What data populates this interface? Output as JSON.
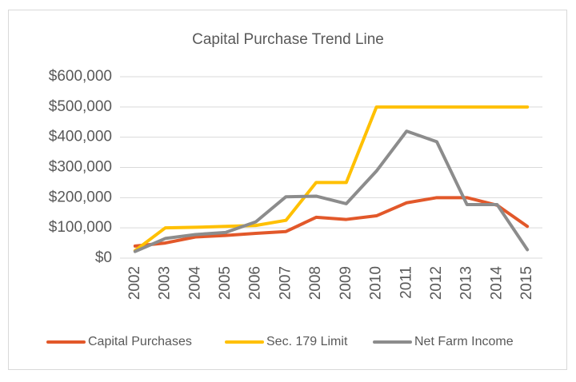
{
  "chart_data": {
    "type": "line",
    "title": "Capital Purchase Trend Line",
    "categories": [
      "2002",
      "2003",
      "2004",
      "2005",
      "2006",
      "2007",
      "2008",
      "2009",
      "2010",
      "2011",
      "2012",
      "2013",
      "2014",
      "2015"
    ],
    "series": [
      {
        "name": "Capital Purchases",
        "color": "#e2582a",
        "values": [
          40000,
          50000,
          70000,
          75000,
          82000,
          88000,
          135000,
          128000,
          140000,
          183000,
          200000,
          200000,
          175000,
          105000
        ]
      },
      {
        "name": "Sec. 179 Limit",
        "color": "#ffc000",
        "values": [
          25000,
          100000,
          102000,
          105000,
          108000,
          125000,
          250000,
          250000,
          500000,
          500000,
          500000,
          500000,
          500000,
          500000
        ]
      },
      {
        "name": "Net Farm Income",
        "color": "#8c8c8c",
        "values": [
          22000,
          65000,
          78000,
          85000,
          120000,
          203000,
          205000,
          180000,
          288000,
          420000,
          385000,
          177000,
          177000,
          28000
        ]
      }
    ],
    "ylim": [
      0,
      600000
    ],
    "yticks": [
      {
        "value": 0,
        "label": "$0"
      },
      {
        "value": 100000,
        "label": "$100,000"
      },
      {
        "value": 200000,
        "label": "$200,000"
      },
      {
        "value": 300000,
        "label": "$300,000"
      },
      {
        "value": 400000,
        "label": "$400,000"
      },
      {
        "value": 500000,
        "label": "$500,000"
      },
      {
        "value": 600000,
        "label": "$600,000"
      }
    ],
    "grid": true,
    "legend": "bottom"
  }
}
